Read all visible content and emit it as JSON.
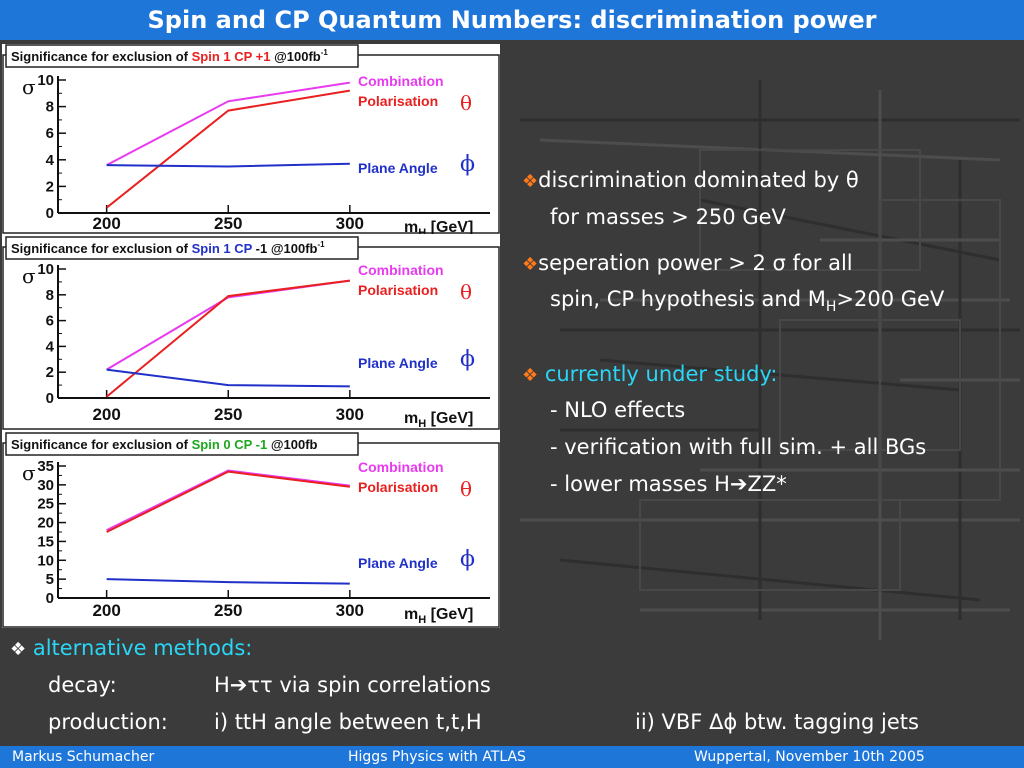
{
  "title": "Spin and CP Quantum Numbers: discrimination power",
  "footer": {
    "author": "Markus  Schumacher",
    "talk": "Higgs Physics  with ATLAS",
    "place_date": "Wuppertal, November 10th 2005"
  },
  "colors": {
    "combination": "#e83bf0",
    "polarisation": "#e82020",
    "plane_angle": "#2030c8",
    "title_bar": "#1f76d9",
    "highlight": "#2ad6f5",
    "bullet": "#ff7a1a"
  },
  "bullets": [
    {
      "symbol": "❖",
      "line1": "discrimination dominated by θ",
      "line2": "for masses > 250 GeV"
    },
    {
      "symbol": "❖",
      "line1": "seperation power > 2 σ for all",
      "line2_pre": "spin, CP hypothesis and M",
      "line2_sub": "H",
      "line2_post": ">200 GeV"
    },
    {
      "symbol": "❖",
      "heading": "currently under study:",
      "items": [
        "- NLO effects",
        "- verification with full sim. + all BGs",
        "- lower masses H➔ZZ*"
      ]
    }
  ],
  "alternative": {
    "symbol": "❖",
    "heading": "alternative methods:",
    "decay_label": "decay:",
    "decay_text": "H➔ττ via spin correlations",
    "production_label": "production:",
    "production_i": "i) ttH angle between t,t,H",
    "production_ii": "ii) VBF Δϕ btw. tagging jets"
  },
  "chart_data": [
    {
      "type": "line",
      "title_pre": "Significance for exclusion of ",
      "title_hl": "Spin 1 CP +1",
      "title_hl_color": "#e82020",
      "title_post": " @100fb",
      "title_sup": "-1",
      "ylabel": "σ",
      "xlabel": "m",
      "xlabel_sub": "H",
      "xlabel_post": " [GeV]",
      "x": [
        200,
        250,
        300
      ],
      "xticks": [
        "200",
        "250",
        "300"
      ],
      "ylim": [
        0,
        10
      ],
      "yticks": [
        "0",
        "2",
        "4",
        "6",
        "8",
        "10"
      ],
      "series": [
        {
          "name": "Combination",
          "values": [
            3.6,
            8.4,
            9.8
          ]
        },
        {
          "name": "Polarisation",
          "symbol": "θ",
          "values": [
            0.4,
            7.7,
            9.2
          ]
        },
        {
          "name": "Plane Angle",
          "symbol": "ϕ",
          "values": [
            3.6,
            3.5,
            3.7
          ]
        }
      ]
    },
    {
      "type": "line",
      "title_pre": "Significance for exclusion of ",
      "title_hl": "Spin 1 CP",
      "title_hl_color": "#2030c8",
      "title_post": " -1 @100fb",
      "title_sup": "-1",
      "ylabel": "σ",
      "xlabel": "m",
      "xlabel_sub": "H",
      "xlabel_post": " [GeV]",
      "x": [
        200,
        250,
        300
      ],
      "xticks": [
        "200",
        "250",
        "300"
      ],
      "ylim": [
        0,
        10
      ],
      "yticks": [
        "0",
        "2",
        "4",
        "6",
        "8",
        "10"
      ],
      "series": [
        {
          "name": "Combination",
          "values": [
            2.2,
            7.8,
            9.1
          ]
        },
        {
          "name": "Polarisation",
          "symbol": "θ",
          "values": [
            0.1,
            7.9,
            9.1
          ]
        },
        {
          "name": "Plane Angle",
          "symbol": "ϕ",
          "values": [
            2.2,
            1.0,
            0.9
          ]
        }
      ]
    },
    {
      "type": "line",
      "title_pre": "Significance for exclusion of ",
      "title_hl": "Spin 0 CP -1",
      "title_hl_color": "#1ea81e",
      "title_post": "  @100fb",
      "title_sup": "",
      "ylabel": "σ",
      "xlabel": "m",
      "xlabel_sub": "H",
      "xlabel_post": " [GeV]",
      "x": [
        200,
        250,
        300
      ],
      "xticks": [
        "200",
        "250",
        "300"
      ],
      "ylim": [
        0,
        35
      ],
      "yticks": [
        "0",
        "5",
        "10",
        "15",
        "20",
        "25",
        "30",
        "35"
      ],
      "series": [
        {
          "name": "Combination",
          "values": [
            18.0,
            33.8,
            29.8
          ]
        },
        {
          "name": "Polarisation",
          "symbol": "θ",
          "values": [
            17.5,
            33.5,
            29.5
          ]
        },
        {
          "name": "Plane Angle",
          "symbol": "ϕ",
          "values": [
            5.0,
            4.2,
            3.8
          ]
        }
      ]
    }
  ]
}
